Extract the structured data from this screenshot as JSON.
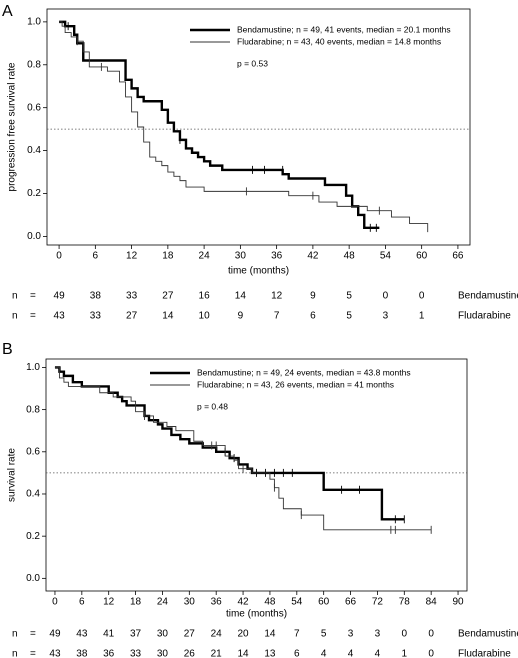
{
  "chart_data": [
    {
      "type": "step",
      "panel": "A",
      "ylabel": "progression free survival rate",
      "xlabel": "time (months)",
      "xlim": [
        -2,
        68
      ],
      "ylim": [
        -0.04,
        1.06
      ],
      "xticks": [
        0,
        6,
        12,
        18,
        24,
        30,
        36,
        42,
        48,
        54,
        60,
        66
      ],
      "yticks": [
        {
          "value": 0,
          "label": "0.0"
        },
        0.2,
        0.4,
        0.6,
        0.8,
        {
          "value": 1,
          "label": "1.0"
        }
      ],
      "ref_line": 0.5,
      "annotation": "p = 0.53",
      "series": [
        {
          "name": "Bendamustine; n = 49, 41 events, median = 20.1 months",
          "color": "#000000",
          "width": 2.4,
          "x": [
            0,
            1,
            2.5,
            3,
            4,
            11,
            12,
            13,
            14,
            17,
            18,
            19,
            20,
            21,
            22,
            23,
            24,
            25,
            27,
            37,
            38,
            44,
            47.5,
            48.5,
            49.5,
            50.5,
            53
          ],
          "values": [
            1.0,
            0.98,
            0.94,
            0.9,
            0.82,
            0.73,
            0.69,
            0.65,
            0.63,
            0.59,
            0.53,
            0.49,
            0.45,
            0.41,
            0.39,
            0.37,
            0.35,
            0.33,
            0.31,
            0.29,
            0.27,
            0.24,
            0.19,
            0.14,
            0.1,
            0.04,
            0.04
          ],
          "censor_x": [
            1.5,
            20,
            32,
            34,
            37,
            51.5,
            52.5
          ],
          "censor_values": [
            0.98,
            0.45,
            0.31,
            0.31,
            0.31,
            0.04,
            0.04
          ]
        },
        {
          "name": "Fludarabine; n = 43, 40 events, median = 14.8 months",
          "color": "#333333",
          "width": 0.9,
          "x": [
            0,
            0.5,
            1,
            2,
            3,
            4,
            5,
            8,
            10,
            11,
            12,
            13,
            14,
            15,
            16,
            17,
            18,
            19,
            20,
            21,
            24,
            38,
            43,
            46,
            51,
            55,
            58,
            61
          ],
          "values": [
            1.0,
            0.98,
            0.95,
            0.93,
            0.91,
            0.86,
            0.79,
            0.77,
            0.72,
            0.65,
            0.58,
            0.51,
            0.44,
            0.37,
            0.35,
            0.33,
            0.3,
            0.28,
            0.26,
            0.23,
            0.21,
            0.19,
            0.16,
            0.14,
            0.12,
            0.09,
            0.06,
            0.02
          ],
          "censor_x": [
            3,
            7,
            31,
            42,
            53
          ],
          "censor_values": [
            0.91,
            0.79,
            0.21,
            0.19,
            0.12
          ]
        }
      ],
      "risk_table": {
        "n_label": "n",
        "eq_label": "=",
        "rows": [
          {
            "label": "Bendamustine",
            "values": [
              49,
              38,
              33,
              27,
              16,
              14,
              12,
              9,
              5,
              0,
              0
            ]
          },
          {
            "label": "Fludarabine",
            "values": [
              43,
              33,
              27,
              14,
              10,
              9,
              7,
              6,
              5,
              3,
              1
            ]
          }
        ]
      }
    },
    {
      "type": "step",
      "panel": "B",
      "ylabel": "survival rate",
      "xlabel": "time (months)",
      "xlim": [
        -2,
        92
      ],
      "ylim": [
        -0.06,
        1.04
      ],
      "xticks": [
        0,
        6,
        12,
        18,
        24,
        30,
        36,
        42,
        48,
        54,
        60,
        66,
        72,
        78,
        84,
        90
      ],
      "yticks": [
        {
          "value": 0,
          "label": "0.0"
        },
        0.2,
        0.4,
        0.6,
        0.8,
        {
          "value": 1,
          "label": "1.0"
        }
      ],
      "ref_line": 0.5,
      "annotation": "p = 0.48",
      "series": [
        {
          "name": "Bendamustine; n = 49, 24 events, median = 43.8 months",
          "color": "#000000",
          "width": 2.4,
          "x": [
            0,
            1,
            2,
            4,
            6,
            12,
            14,
            15,
            16,
            20,
            21,
            23,
            24,
            26,
            28,
            30,
            33,
            36,
            39,
            41,
            43,
            44,
            60,
            73,
            78
          ],
          "values": [
            1.0,
            0.98,
            0.96,
            0.93,
            0.91,
            0.88,
            0.86,
            0.84,
            0.82,
            0.77,
            0.75,
            0.73,
            0.71,
            0.68,
            0.66,
            0.64,
            0.62,
            0.6,
            0.57,
            0.54,
            0.52,
            0.5,
            0.42,
            0.28,
            0.28
          ],
          "censor_x": [
            38,
            40,
            45,
            47,
            49,
            51,
            53,
            64,
            68,
            76,
            78
          ],
          "censor_values": [
            0.6,
            0.57,
            0.5,
            0.5,
            0.5,
            0.5,
            0.5,
            0.42,
            0.42,
            0.28,
            0.28
          ]
        },
        {
          "name": "Fludarabine; n = 43, 26 events, median = 41 months",
          "color": "#333333",
          "width": 0.9,
          "x": [
            0,
            1,
            2,
            3,
            10,
            13,
            17,
            18,
            20,
            22,
            25,
            27,
            31,
            33,
            38,
            40,
            41,
            44,
            48,
            49,
            50,
            51,
            55,
            60,
            84
          ],
          "values": [
            1.0,
            0.95,
            0.93,
            0.91,
            0.88,
            0.86,
            0.84,
            0.79,
            0.77,
            0.74,
            0.72,
            0.7,
            0.65,
            0.63,
            0.58,
            0.56,
            0.52,
            0.5,
            0.47,
            0.43,
            0.38,
            0.33,
            0.3,
            0.23,
            0.23
          ],
          "censor_x": [
            20,
            35,
            36,
            42,
            49,
            55,
            75,
            76,
            84
          ],
          "censor_values": [
            0.77,
            0.63,
            0.63,
            0.52,
            0.43,
            0.3,
            0.23,
            0.23,
            0.23
          ]
        }
      ],
      "risk_table": {
        "n_label": "n",
        "eq_label": "=",
        "rows": [
          {
            "label": "Bendamustine",
            "values": [
              49,
              43,
              41,
              37,
              30,
              27,
              24,
              20,
              14,
              7,
              5,
              3,
              3,
              0,
              0
            ]
          },
          {
            "label": "Fludarabine",
            "values": [
              43,
              38,
              36,
              33,
              30,
              26,
              21,
              14,
              13,
              6,
              4,
              4,
              4,
              1,
              0
            ]
          }
        ]
      }
    }
  ]
}
